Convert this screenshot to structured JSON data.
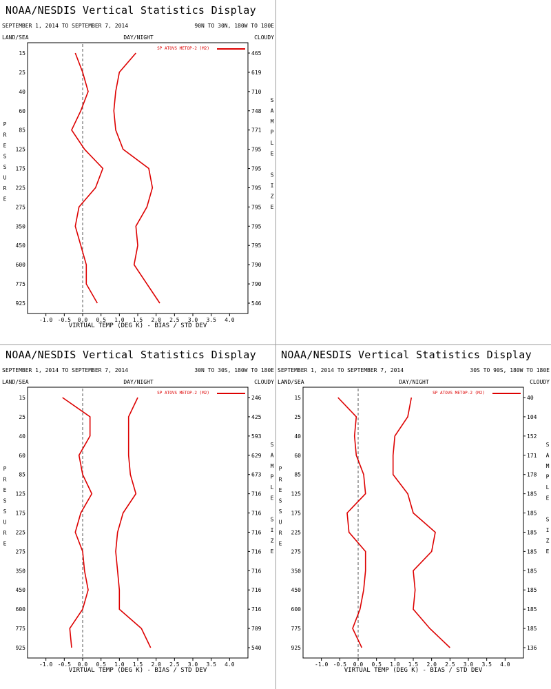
{
  "page": {
    "panel_title": "NOAA/NESDIS Vertical Statistics Display",
    "date_range": "SEPTEMBER 1, 2014 TO SEPTEMBER 7, 2014",
    "land_sea_label": "LAND/SEA",
    "day_night_label": "DAY/NIGHT",
    "cloudy_label": "CLOUDY",
    "left_axis_label": "PRESSURE",
    "right_axis_label": "SAMPLE SIZE",
    "x_axis_label": "VIRTUAL TEMP (DEG K) - BIAS / STD DEV",
    "legend_label": "SP ATOVS METOP-2 (M2)",
    "line_color": "#dd0000",
    "zero_line_color": "#555555"
  },
  "chart_data": [
    {
      "type": "line",
      "region": "90N TO 30N, 180W TO 180E",
      "pressure_levels": [
        "15",
        "25",
        "40",
        "60",
        "85",
        "125",
        "175",
        "225",
        "275",
        "350",
        "450",
        "600",
        "775",
        "925"
      ],
      "sample_size": [
        "465",
        "619",
        "710",
        "748",
        "771",
        "795",
        "795",
        "795",
        "795",
        "795",
        "795",
        "790",
        "790",
        "546"
      ],
      "xlim": [
        -1.5,
        4.5
      ],
      "xticks": [
        "-1.0",
        "-0.5",
        "0.0",
        "0.5",
        "1.0",
        "1.5",
        "2.0",
        "2.5",
        "3.0",
        "3.5",
        "4.0"
      ],
      "series": [
        {
          "name": "bias",
          "values": [
            -0.2,
            0.0,
            0.15,
            -0.05,
            -0.3,
            0.05,
            0.55,
            0.35,
            -0.1,
            -0.2,
            -0.05,
            0.1,
            0.1,
            0.4
          ]
        },
        {
          "name": "std dev",
          "values": [
            1.45,
            1.0,
            0.9,
            0.85,
            0.9,
            1.1,
            1.8,
            1.9,
            1.75,
            1.45,
            1.5,
            1.4,
            1.75,
            2.1
          ]
        }
      ]
    },
    {
      "type": "line",
      "region": "30N TO 30S, 180W TO 180E",
      "pressure_levels": [
        "15",
        "25",
        "40",
        "60",
        "85",
        "125",
        "175",
        "225",
        "275",
        "350",
        "450",
        "600",
        "775",
        "925"
      ],
      "sample_size": [
        "246",
        "425",
        "593",
        "629",
        "673",
        "716",
        "716",
        "716",
        "716",
        "716",
        "716",
        "716",
        "709",
        "540"
      ],
      "xlim": [
        -1.5,
        4.5
      ],
      "xticks": [
        "-1.0",
        "-0.5",
        "0.0",
        "0.5",
        "1.0",
        "1.5",
        "2.0",
        "2.5",
        "3.0",
        "3.5",
        "4.0"
      ],
      "series": [
        {
          "name": "bias",
          "values": [
            -0.55,
            0.2,
            0.2,
            -0.1,
            0.0,
            0.25,
            -0.05,
            -0.2,
            0.0,
            0.05,
            0.15,
            0.0,
            -0.35,
            -0.3
          ]
        },
        {
          "name": "std dev",
          "values": [
            1.5,
            1.25,
            1.25,
            1.25,
            1.3,
            1.45,
            1.1,
            0.95,
            0.9,
            0.95,
            1.0,
            1.0,
            1.6,
            1.85
          ]
        }
      ]
    },
    {
      "type": "line",
      "region": "30S TO 90S, 180W TO 180E",
      "pressure_levels": [
        "15",
        "25",
        "40",
        "60",
        "85",
        "125",
        "175",
        "225",
        "275",
        "350",
        "450",
        "600",
        "775",
        "925"
      ],
      "sample_size": [
        "40",
        "104",
        "152",
        "171",
        "178",
        "185",
        "185",
        "185",
        "185",
        "185",
        "185",
        "185",
        "185",
        "136"
      ],
      "xlim": [
        -1.5,
        4.5
      ],
      "xticks": [
        "-1.0",
        "-0.5",
        "0.0",
        "0.5",
        "1.0",
        "1.5",
        "2.0",
        "2.5",
        "3.0",
        "3.5",
        "4.0"
      ],
      "series": [
        {
          "name": "bias",
          "values": [
            -0.55,
            -0.05,
            -0.1,
            -0.05,
            0.15,
            0.2,
            -0.3,
            -0.25,
            0.2,
            0.2,
            0.15,
            0.05,
            -0.15,
            0.1
          ]
        },
        {
          "name": "std dev",
          "values": [
            1.45,
            1.35,
            1.0,
            0.95,
            0.95,
            1.35,
            1.5,
            2.1,
            2.0,
            1.5,
            1.55,
            1.5,
            1.95,
            2.5
          ]
        }
      ]
    }
  ]
}
